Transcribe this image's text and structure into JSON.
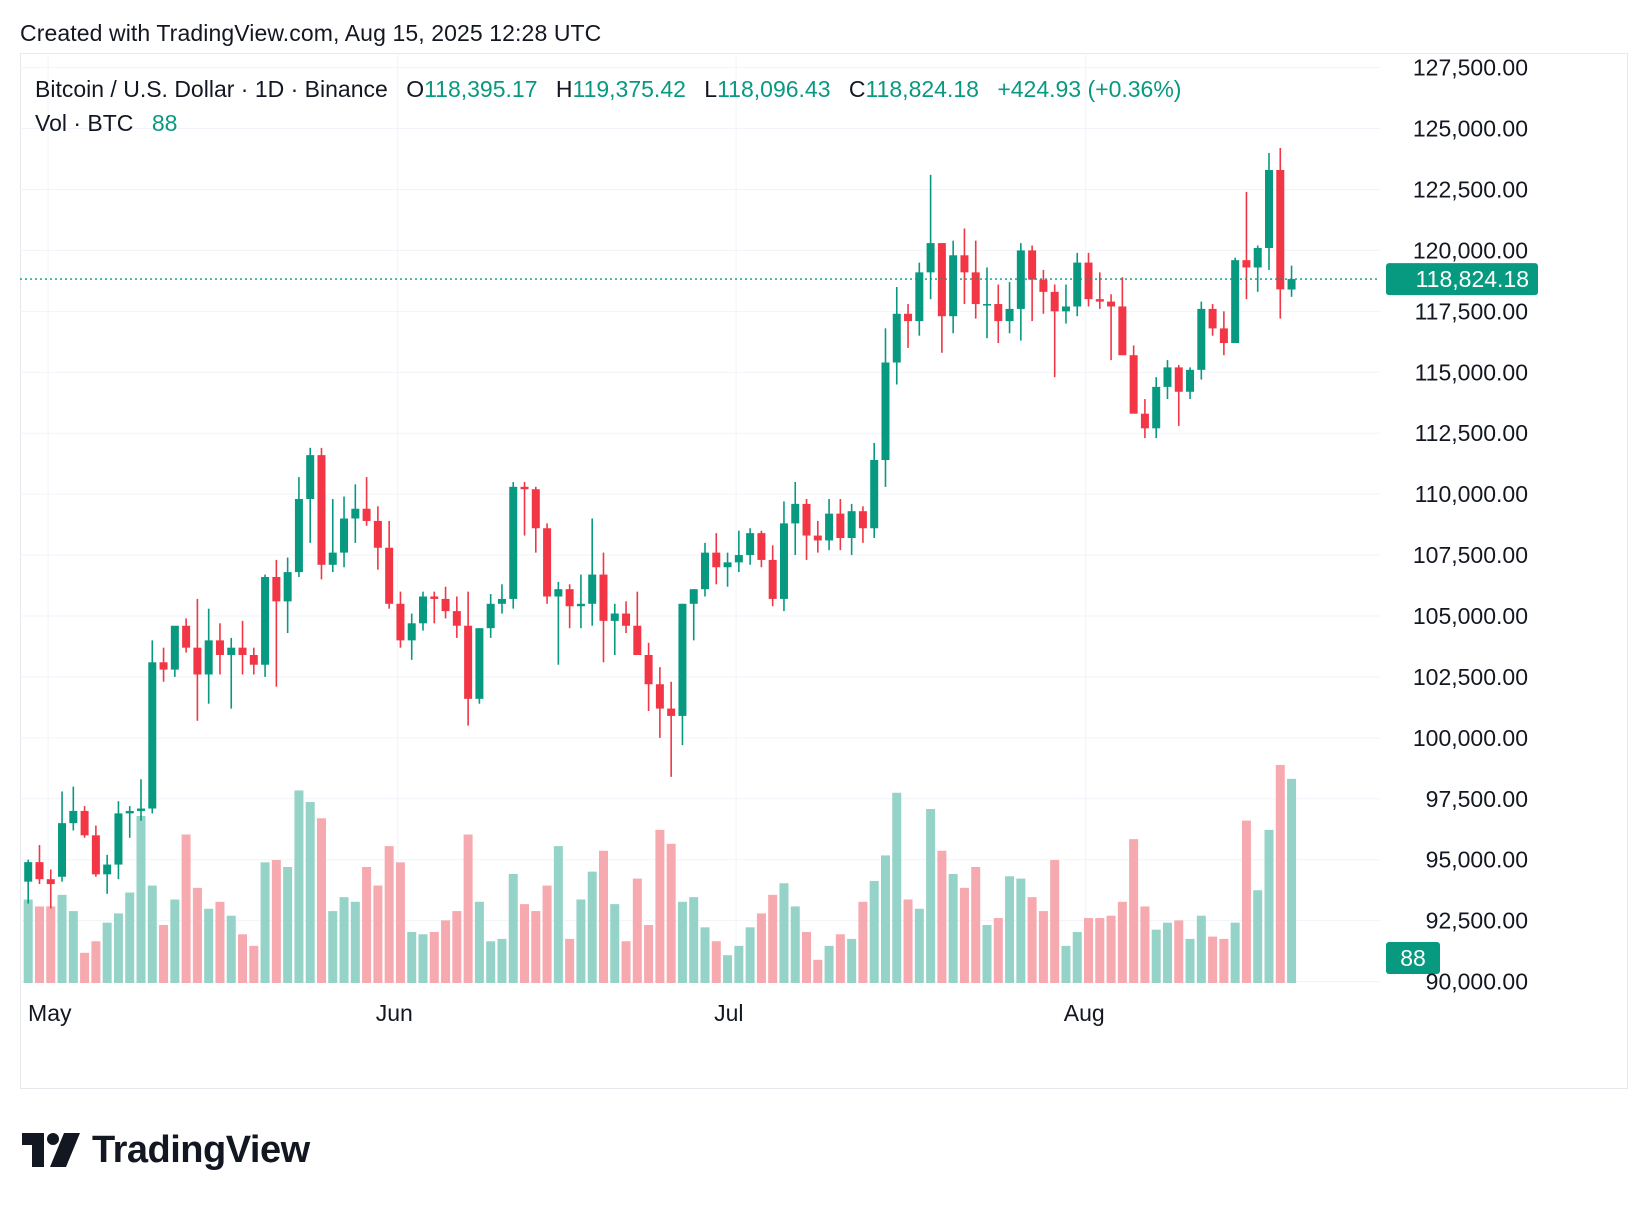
{
  "header": {
    "created_text": "Created with TradingView.com, Aug 15, 2025 12:28 UTC"
  },
  "legend": {
    "symbol": "Bitcoin / U.S. Dollar · 1D · Binance",
    "open_label": "O",
    "open": "118,395.17",
    "high_label": "H",
    "high": "119,375.42",
    "low_label": "L",
    "low": "118,096.43",
    "close_label": "C",
    "close": "118,824.18",
    "change": "+424.93 (+0.36%)",
    "vol_label": "Vol · BTC",
    "vol_value": "88"
  },
  "brand": {
    "name": "TradingView",
    "logo_icon": "tradingview-logo-icon"
  },
  "colors": {
    "up": "#089981",
    "down": "#f23645",
    "vol_up": "#95d3c8",
    "vol_down": "#f6a9ae",
    "grid": "#f0f3fa",
    "text": "#131722"
  },
  "chart_data": {
    "type": "candlestick",
    "interval": "1D",
    "y_axis": {
      "ticks": [
        90000,
        92500,
        95000,
        97500,
        100000,
        102500,
        105000,
        107500,
        110000,
        112500,
        115000,
        117500,
        120000,
        122500,
        125000,
        127500
      ],
      "tick_labels": [
        "90,000.00",
        "92,500.00",
        "95,000.00",
        "97,500.00",
        "100,000.00",
        "102,500.00",
        "105,000.00",
        "107,500.00",
        "110,000.00",
        "112,500.00",
        "115,000.00",
        "117,500.00",
        "120,000.00",
        "122,500.00",
        "125,000.00",
        "127,500.00"
      ],
      "range": [
        89900,
        128100
      ]
    },
    "x_axis": {
      "labels": [
        {
          "text": "May",
          "index": 3
        },
        {
          "text": "Jun",
          "index": 34
        },
        {
          "text": "Jul",
          "index": 64
        },
        {
          "text": "Aug",
          "index": 95
        }
      ]
    },
    "last_price": {
      "value": 118824.18,
      "label": "118,824.18"
    },
    "last_volume": {
      "value": 88,
      "label": "88"
    },
    "volume_max": 100,
    "candles": [
      {
        "o": 94100,
        "h": 95000,
        "l": 93200,
        "c": 94900,
        "v": 36
      },
      {
        "o": 94900,
        "h": 95600,
        "l": 94000,
        "c": 94200,
        "v": 33
      },
      {
        "o": 94200,
        "h": 94600,
        "l": 93000,
        "c": 94000,
        "v": 33
      },
      {
        "o": 94300,
        "h": 97800,
        "l": 94100,
        "c": 96500,
        "v": 38
      },
      {
        "o": 96500,
        "h": 98000,
        "l": 96200,
        "c": 97000,
        "v": 31
      },
      {
        "o": 97000,
        "h": 97200,
        "l": 95900,
        "c": 96000,
        "v": 13
      },
      {
        "o": 96000,
        "h": 96400,
        "l": 94300,
        "c": 94400,
        "v": 18
      },
      {
        "o": 94400,
        "h": 95200,
        "l": 93600,
        "c": 94800,
        "v": 26
      },
      {
        "o": 94800,
        "h": 97400,
        "l": 94200,
        "c": 96900,
        "v": 30
      },
      {
        "o": 96900,
        "h": 97200,
        "l": 95900,
        "c": 97000,
        "v": 39
      },
      {
        "o": 97000,
        "h": 98300,
        "l": 96600,
        "c": 97100,
        "v": 72
      },
      {
        "o": 97100,
        "h": 104000,
        "l": 96900,
        "c": 103100,
        "v": 42
      },
      {
        "o": 103100,
        "h": 103700,
        "l": 102300,
        "c": 102800,
        "v": 25
      },
      {
        "o": 102800,
        "h": 104400,
        "l": 102500,
        "c": 104600,
        "v": 36
      },
      {
        "o": 104600,
        "h": 104900,
        "l": 103500,
        "c": 103700,
        "v": 64
      },
      {
        "o": 103700,
        "h": 105700,
        "l": 100700,
        "c": 102600,
        "v": 41
      },
      {
        "o": 102600,
        "h": 105300,
        "l": 101400,
        "c": 104000,
        "v": 32
      },
      {
        "o": 104000,
        "h": 104700,
        "l": 102600,
        "c": 103400,
        "v": 35
      },
      {
        "o": 103400,
        "h": 104100,
        "l": 101200,
        "c": 103700,
        "v": 29
      },
      {
        "o": 103700,
        "h": 104800,
        "l": 102600,
        "c": 103400,
        "v": 21
      },
      {
        "o": 103400,
        "h": 103700,
        "l": 102600,
        "c": 103000,
        "v": 16
      },
      {
        "o": 103000,
        "h": 106700,
        "l": 102500,
        "c": 106600,
        "v": 52
      },
      {
        "o": 106600,
        "h": 107300,
        "l": 102100,
        "c": 105600,
        "v": 53
      },
      {
        "o": 105600,
        "h": 107400,
        "l": 104300,
        "c": 106800,
        "v": 50
      },
      {
        "o": 106800,
        "h": 110700,
        "l": 106600,
        "c": 109800,
        "v": 83
      },
      {
        "o": 109800,
        "h": 111900,
        "l": 108000,
        "c": 111600,
        "v": 78
      },
      {
        "o": 111600,
        "h": 111900,
        "l": 106500,
        "c": 107100,
        "v": 71
      },
      {
        "o": 107100,
        "h": 109800,
        "l": 106800,
        "c": 107600,
        "v": 31
      },
      {
        "o": 107600,
        "h": 109900,
        "l": 107000,
        "c": 109000,
        "v": 37
      },
      {
        "o": 109000,
        "h": 110400,
        "l": 108000,
        "c": 109400,
        "v": 35
      },
      {
        "o": 109400,
        "h": 110700,
        "l": 108700,
        "c": 108900,
        "v": 50
      },
      {
        "o": 108900,
        "h": 109500,
        "l": 106900,
        "c": 107800,
        "v": 42
      },
      {
        "o": 107800,
        "h": 108900,
        "l": 105300,
        "c": 105500,
        "v": 59
      },
      {
        "o": 105500,
        "h": 106000,
        "l": 103700,
        "c": 104000,
        "v": 52
      },
      {
        "o": 104000,
        "h": 105100,
        "l": 103200,
        "c": 104700,
        "v": 22
      },
      {
        "o": 104700,
        "h": 106000,
        "l": 104400,
        "c": 105800,
        "v": 21
      },
      {
        "o": 105800,
        "h": 106000,
        "l": 104700,
        "c": 105700,
        "v": 22
      },
      {
        "o": 105700,
        "h": 106200,
        "l": 104900,
        "c": 105200,
        "v": 27
      },
      {
        "o": 105200,
        "h": 105800,
        "l": 104100,
        "c": 104600,
        "v": 31
      },
      {
        "o": 104600,
        "h": 106000,
        "l": 100500,
        "c": 101600,
        "v": 64
      },
      {
        "o": 101600,
        "h": 104500,
        "l": 101400,
        "c": 104500,
        "v": 35
      },
      {
        "o": 104500,
        "h": 105900,
        "l": 104100,
        "c": 105500,
        "v": 18
      },
      {
        "o": 105500,
        "h": 106300,
        "l": 105100,
        "c": 105700,
        "v": 19
      },
      {
        "o": 105700,
        "h": 110500,
        "l": 105300,
        "c": 110300,
        "v": 47
      },
      {
        "o": 110300,
        "h": 110500,
        "l": 108300,
        "c": 110200,
        "v": 34
      },
      {
        "o": 110200,
        "h": 110300,
        "l": 107600,
        "c": 108600,
        "v": 31
      },
      {
        "o": 108600,
        "h": 108800,
        "l": 105500,
        "c": 105800,
        "v": 42
      },
      {
        "o": 105800,
        "h": 106400,
        "l": 103000,
        "c": 106100,
        "v": 59
      },
      {
        "o": 106100,
        "h": 106300,
        "l": 104500,
        "c": 105400,
        "v": 19
      },
      {
        "o": 105400,
        "h": 106700,
        "l": 104500,
        "c": 105500,
        "v": 36
      },
      {
        "o": 105500,
        "h": 109000,
        "l": 104600,
        "c": 106700,
        "v": 48
      },
      {
        "o": 106700,
        "h": 107600,
        "l": 103100,
        "c": 104800,
        "v": 57
      },
      {
        "o": 104800,
        "h": 105500,
        "l": 103400,
        "c": 105100,
        "v": 34
      },
      {
        "o": 105100,
        "h": 105600,
        "l": 104300,
        "c": 104600,
        "v": 18
      },
      {
        "o": 104600,
        "h": 106000,
        "l": 103400,
        "c": 103400,
        "v": 45
      },
      {
        "o": 103400,
        "h": 103900,
        "l": 101100,
        "c": 102200,
        "v": 25
      },
      {
        "o": 102200,
        "h": 102900,
        "l": 100000,
        "c": 101200,
        "v": 66
      },
      {
        "o": 101200,
        "h": 102300,
        "l": 98400,
        "c": 100900,
        "v": 60
      },
      {
        "o": 100900,
        "h": 105500,
        "l": 99700,
        "c": 105500,
        "v": 35
      },
      {
        "o": 105500,
        "h": 106100,
        "l": 104000,
        "c": 106100,
        "v": 37
      },
      {
        "o": 106100,
        "h": 108000,
        "l": 105800,
        "c": 107600,
        "v": 24
      },
      {
        "o": 107600,
        "h": 108400,
        "l": 106300,
        "c": 107000,
        "v": 18
      },
      {
        "o": 107000,
        "h": 107600,
        "l": 106200,
        "c": 107200,
        "v": 12
      },
      {
        "o": 107200,
        "h": 108500,
        "l": 106800,
        "c": 107500,
        "v": 16
      },
      {
        "o": 107500,
        "h": 108600,
        "l": 107100,
        "c": 108400,
        "v": 24
      },
      {
        "o": 108400,
        "h": 108500,
        "l": 107000,
        "c": 107300,
        "v": 30
      },
      {
        "o": 107300,
        "h": 107900,
        "l": 105400,
        "c": 105700,
        "v": 38
      },
      {
        "o": 105700,
        "h": 109700,
        "l": 105200,
        "c": 108800,
        "v": 43
      },
      {
        "o": 108800,
        "h": 110500,
        "l": 107500,
        "c": 109600,
        "v": 33
      },
      {
        "o": 109600,
        "h": 109800,
        "l": 107300,
        "c": 108300,
        "v": 22
      },
      {
        "o": 108300,
        "h": 108900,
        "l": 107600,
        "c": 108100,
        "v": 10
      },
      {
        "o": 108100,
        "h": 109800,
        "l": 107700,
        "c": 109200,
        "v": 16
      },
      {
        "o": 109200,
        "h": 109800,
        "l": 107700,
        "c": 108200,
        "v": 21
      },
      {
        "o": 108200,
        "h": 109600,
        "l": 107500,
        "c": 109300,
        "v": 19
      },
      {
        "o": 109300,
        "h": 109500,
        "l": 108000,
        "c": 108600,
        "v": 35
      },
      {
        "o": 108600,
        "h": 112100,
        "l": 108200,
        "c": 111400,
        "v": 44
      },
      {
        "o": 111400,
        "h": 116800,
        "l": 110300,
        "c": 115400,
        "v": 55
      },
      {
        "o": 115400,
        "h": 118500,
        "l": 114500,
        "c": 117400,
        "v": 82
      },
      {
        "o": 117400,
        "h": 117800,
        "l": 116000,
        "c": 117100,
        "v": 36
      },
      {
        "o": 117100,
        "h": 119500,
        "l": 116500,
        "c": 119100,
        "v": 32
      },
      {
        "o": 119100,
        "h": 123100,
        "l": 118000,
        "c": 120300,
        "v": 75
      },
      {
        "o": 120300,
        "h": 120300,
        "l": 115800,
        "c": 117300,
        "v": 57
      },
      {
        "o": 117300,
        "h": 120400,
        "l": 116600,
        "c": 119800,
        "v": 47
      },
      {
        "o": 119800,
        "h": 120900,
        "l": 117800,
        "c": 119100,
        "v": 41
      },
      {
        "o": 119100,
        "h": 120400,
        "l": 117200,
        "c": 117800,
        "v": 50
      },
      {
        "o": 117800,
        "h": 119300,
        "l": 116400,
        "c": 117800,
        "v": 25
      },
      {
        "o": 117800,
        "h": 118600,
        "l": 116200,
        "c": 117100,
        "v": 28
      },
      {
        "o": 117100,
        "h": 118700,
        "l": 116600,
        "c": 117600,
        "v": 46
      },
      {
        "o": 117600,
        "h": 120300,
        "l": 116300,
        "c": 120000,
        "v": 45
      },
      {
        "o": 120000,
        "h": 120200,
        "l": 117100,
        "c": 118800,
        "v": 37
      },
      {
        "o": 118800,
        "h": 119200,
        "l": 117400,
        "c": 118300,
        "v": 31
      },
      {
        "o": 118300,
        "h": 118600,
        "l": 114800,
        "c": 117500,
        "v": 53
      },
      {
        "o": 117500,
        "h": 118600,
        "l": 117000,
        "c": 117700,
        "v": 16
      },
      {
        "o": 117700,
        "h": 119900,
        "l": 117300,
        "c": 119500,
        "v": 22
      },
      {
        "o": 119500,
        "h": 119900,
        "l": 117700,
        "c": 118000,
        "v": 28
      },
      {
        "o": 118000,
        "h": 119100,
        "l": 117600,
        "c": 117900,
        "v": 28
      },
      {
        "o": 117900,
        "h": 118200,
        "l": 115500,
        "c": 117700,
        "v": 29
      },
      {
        "o": 117700,
        "h": 118900,
        "l": 115700,
        "c": 115700,
        "v": 35
      },
      {
        "o": 115700,
        "h": 116100,
        "l": 113400,
        "c": 113300,
        "v": 62
      },
      {
        "o": 113300,
        "h": 113900,
        "l": 112300,
        "c": 112700,
        "v": 33
      },
      {
        "o": 112700,
        "h": 114800,
        "l": 112300,
        "c": 114400,
        "v": 23
      },
      {
        "o": 114400,
        "h": 115500,
        "l": 113900,
        "c": 115200,
        "v": 26
      },
      {
        "o": 115200,
        "h": 115300,
        "l": 112800,
        "c": 114200,
        "v": 27
      },
      {
        "o": 114200,
        "h": 115200,
        "l": 113900,
        "c": 115100,
        "v": 19
      },
      {
        "o": 115100,
        "h": 117900,
        "l": 114700,
        "c": 117600,
        "v": 29
      },
      {
        "o": 117600,
        "h": 117800,
        "l": 116500,
        "c": 116800,
        "v": 20
      },
      {
        "o": 116800,
        "h": 117500,
        "l": 115700,
        "c": 116200,
        "v": 19
      },
      {
        "o": 116200,
        "h": 119700,
        "l": 116200,
        "c": 119600,
        "v": 26
      },
      {
        "o": 119600,
        "h": 122400,
        "l": 118000,
        "c": 119300,
        "v": 70
      },
      {
        "o": 119300,
        "h": 120200,
        "l": 118300,
        "c": 120100,
        "v": 40
      },
      {
        "o": 120100,
        "h": 124000,
        "l": 119200,
        "c": 123300,
        "v": 66
      },
      {
        "o": 123300,
        "h": 124200,
        "l": 117200,
        "c": 118400,
        "v": 94
      },
      {
        "o": 118395.17,
        "h": 119375.42,
        "l": 118096.43,
        "c": 118824.18,
        "v": 88
      }
    ]
  }
}
